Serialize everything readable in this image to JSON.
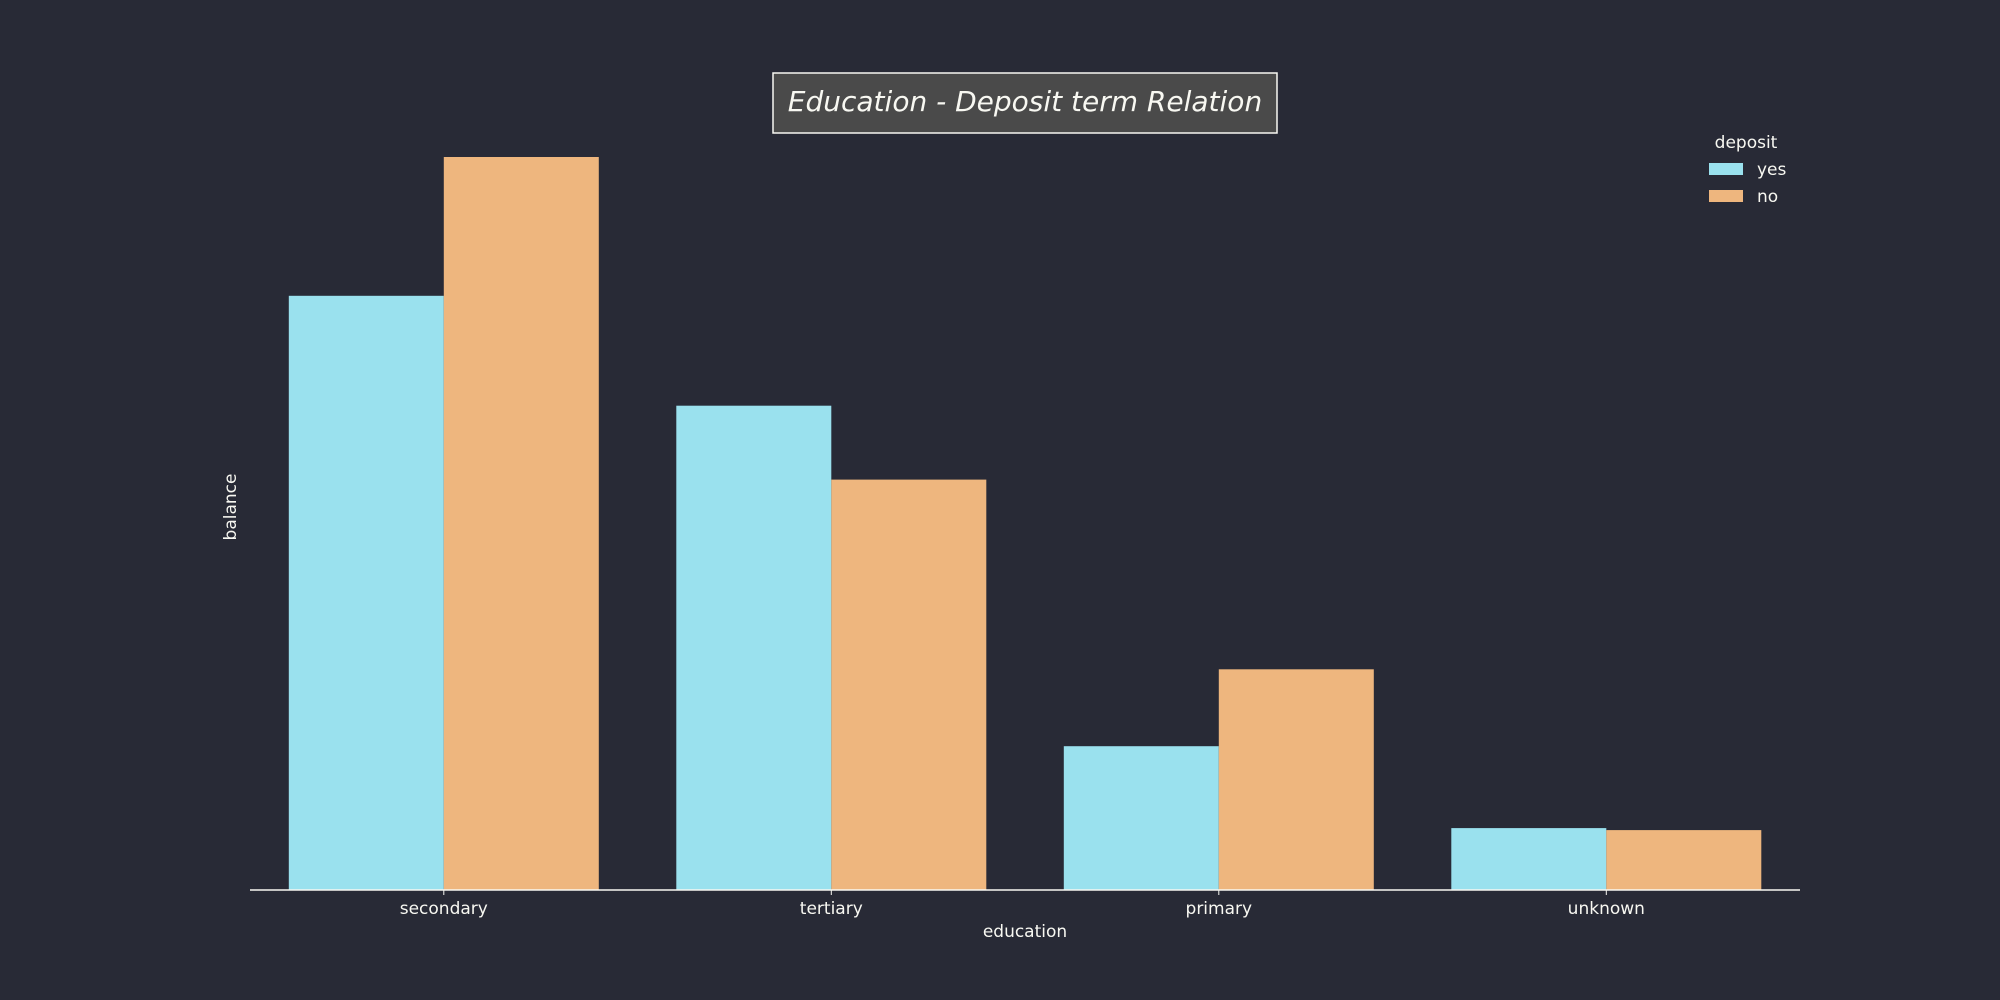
{
  "chart_data": {
    "type": "bar",
    "title": "Education - Deposit term Relation",
    "xlabel": "education",
    "ylabel": "balance",
    "categories": [
      "secondary",
      "tertiary",
      "primary",
      "unknown"
    ],
    "series": [
      {
        "name": "yes",
        "values": [
          595,
          485,
          144,
          62
        ]
      },
      {
        "name": "no",
        "values": [
          734,
          411,
          221,
          60
        ]
      }
    ],
    "ylim": [
      0,
      734
    ],
    "grid": false,
    "legend": {
      "title": "deposit",
      "position": "top-right"
    },
    "colors": {
      "background": "#282a36",
      "yes": "#9ae1ee",
      "no": "#eeb67e",
      "text": "#f8f8f2",
      "title_box": "#4a4a4a"
    }
  }
}
